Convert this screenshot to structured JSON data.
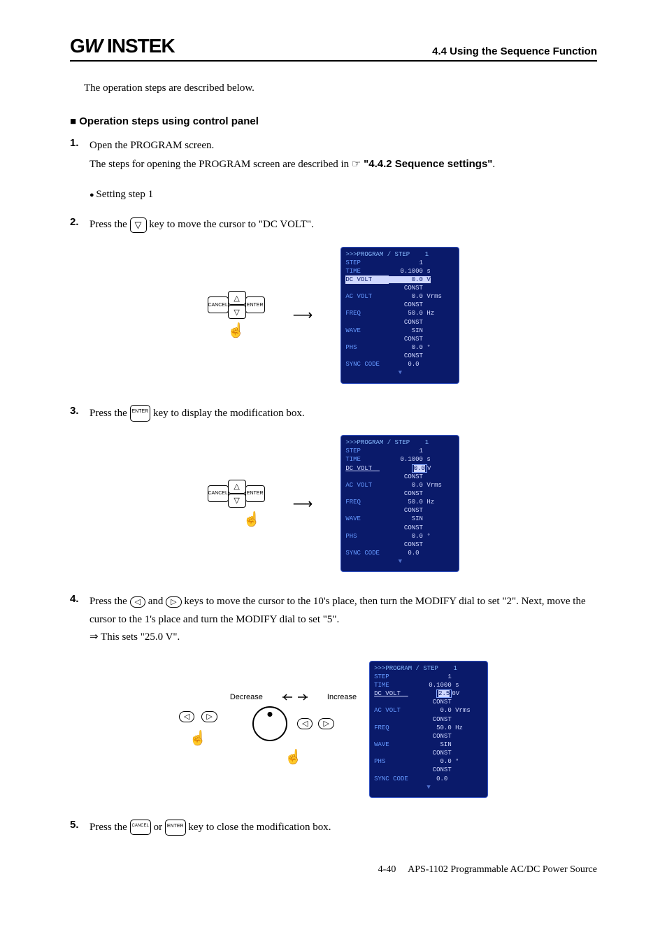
{
  "header": {
    "logo": "GWINSTEK",
    "section": "4.4 Using the Sequence Function"
  },
  "intro": "The operation steps are described below.",
  "heading": "Operation steps using control panel",
  "step1": {
    "num": "1.",
    "line1": "Open the PROGRAM screen.",
    "line2a": "The steps for opening the PROGRAM screen are described in ",
    "ref": "\"4.4.2  Sequence settings\"",
    "line2b": "."
  },
  "bullet1": "Setting step 1",
  "step2": {
    "num": "2.",
    "prefix": "Press the ",
    "suffix": " key to move the cursor to \"DC VOLT\"."
  },
  "step3": {
    "num": "3.",
    "prefix": "Press the ",
    "suffix": " key to display the modification box."
  },
  "step4": {
    "num": "4.",
    "prefix": "Press the ",
    "mid1": " and ",
    "mid2": " keys to move the cursor to the 10's place, then turn the MODIFY dial to set \"2\". Next, move the cursor to the 1's place and turn the MODIFY dial to set \"5\".",
    "result": "⇒  This sets \"25.0 V\"."
  },
  "step5": {
    "num": "5.",
    "prefix": "Press the ",
    "or": " or ",
    "suffix": " key to close the modification box."
  },
  "dial": {
    "decrease": "Decrease",
    "increase": "Increase"
  },
  "keys": {
    "cancel": "CANCEL",
    "enter": "ENTER"
  },
  "lcd1": {
    "title": ">>>PROGRAM / STEP    1",
    "rows": [
      [
        "STEP",
        "        1"
      ],
      [
        "TIME",
        "   0.1000 s"
      ],
      [
        "DC VOLT",
        "      0.0 V",
        "hl"
      ],
      [
        "",
        "    CONST"
      ],
      [
        "AC VOLT",
        "      0.0 Vrms"
      ],
      [
        "",
        "    CONST"
      ],
      [
        "FREQ",
        "     50.0 Hz"
      ],
      [
        "",
        "    CONST"
      ],
      [
        "WAVE",
        "      SIN"
      ],
      [
        "",
        "    CONST"
      ],
      [
        "PHS",
        "      0.0 °"
      ],
      [
        "",
        "    CONST"
      ],
      [
        "SYNC CODE",
        "     0.0"
      ]
    ]
  },
  "lcd2": {
    "title": ">>>PROGRAM / STEP    1",
    "rows": [
      [
        "STEP",
        "        1"
      ],
      [
        "TIME",
        "   0.1000 s"
      ],
      [
        "DC VOLT",
        "      ",
        "0.0",
        "V",
        "box"
      ],
      [
        "",
        "    CONST"
      ],
      [
        "AC VOLT",
        "      0.0 Vrms"
      ],
      [
        "",
        "    CONST"
      ],
      [
        "FREQ",
        "     50.0 Hz"
      ],
      [
        "",
        "    CONST"
      ],
      [
        "WAVE",
        "      SIN"
      ],
      [
        "",
        "    CONST"
      ],
      [
        "PHS",
        "      0.0 °"
      ],
      [
        "",
        "    CONST"
      ],
      [
        "SYNC CODE",
        "     0.0"
      ]
    ]
  },
  "lcd3": {
    "title": ">>>PROGRAM / STEP    1",
    "rows": [
      [
        "STEP",
        "        1"
      ],
      [
        "TIME",
        "   0.1000 s"
      ],
      [
        "DC VOLT",
        "     ",
        "2.5",
        "0V",
        "box2"
      ],
      [
        "",
        "    CONST"
      ],
      [
        "AC VOLT",
        "      0.0 Vrms"
      ],
      [
        "",
        "    CONST"
      ],
      [
        "FREQ",
        "     50.0 Hz"
      ],
      [
        "",
        "    CONST"
      ],
      [
        "WAVE",
        "      SIN"
      ],
      [
        "",
        "    CONST"
      ],
      [
        "PHS",
        "      0.0 °"
      ],
      [
        "",
        "    CONST"
      ],
      [
        "SYNC CODE",
        "     0.0"
      ]
    ]
  },
  "footer": {
    "page": "4-40",
    "title": "APS-1102 Programmable AC/DC Power Source"
  }
}
